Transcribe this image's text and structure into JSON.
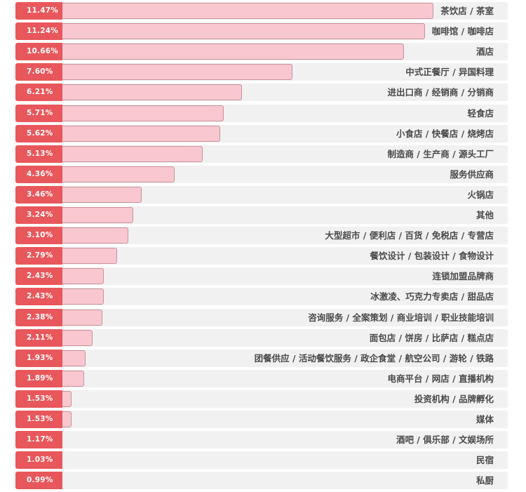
{
  "chart_data": {
    "type": "bar",
    "orientation": "horizontal",
    "title": "",
    "xlabel": "",
    "ylabel": "",
    "grid": false,
    "categories": [
      "茶饮店 / 茶室",
      "咖啡馆 / 咖啡店",
      "酒店",
      "中式正餐厅 / 异国料理",
      "进出口商 / 经销商 / 分销商",
      "轻食店",
      "小食店 / 快餐店 / 烧烤店",
      "制造商 / 生产商 / 源头工厂",
      "服务供应商",
      "火锅店",
      "其他",
      "大型超市 / 便利店 / 百货 / 免税店 / 专营店",
      "餐饮设计 / 包装设计 / 食物设计",
      "连锁加盟品牌商",
      "冰激凌、巧克力专卖店 / 甜品店",
      "咨询服务 / 全案策划 / 商业培训 / 职业技能培训",
      "面包店 / 饼房 / 比萨店 / 糕点店",
      "团餐供应 / 活动餐饮服务 / 政企食堂 / 航空公司 / 游轮 / 铁路",
      "电商平台 / 网店 / 直播机构",
      "投资机构 / 品牌孵化",
      "媒体",
      "酒吧 / 俱乐部 / 文娱场所",
      "民宿",
      "私厨"
    ],
    "values": [
      11.47,
      11.24,
      10.66,
      7.6,
      6.21,
      5.71,
      5.62,
      5.13,
      4.36,
      3.46,
      3.24,
      3.1,
      2.79,
      2.43,
      2.43,
      2.38,
      2.11,
      1.93,
      1.89,
      1.53,
      1.53,
      1.17,
      1.03,
      0.99
    ],
    "value_labels": [
      "11.47%",
      "11.24%",
      "10.66%",
      "7.60%",
      "6.21%",
      "5.71%",
      "5.62%",
      "5.13%",
      "4.36%",
      "3.46%",
      "3.24%",
      "3.10%",
      "2.79%",
      "2.43%",
      "2.43%",
      "2.38%",
      "2.11%",
      "1.93%",
      "1.89%",
      "1.53%",
      "1.53%",
      "1.17%",
      "1.03%",
      "0.99%"
    ],
    "xlim": [
      0,
      13.5
    ],
    "colors": {
      "bar_fill": "#f8c7d0",
      "bar_border": "#c9939c",
      "badge": "#e8575b",
      "track": "#f1f1f1",
      "label": "#4a4a4a"
    }
  }
}
